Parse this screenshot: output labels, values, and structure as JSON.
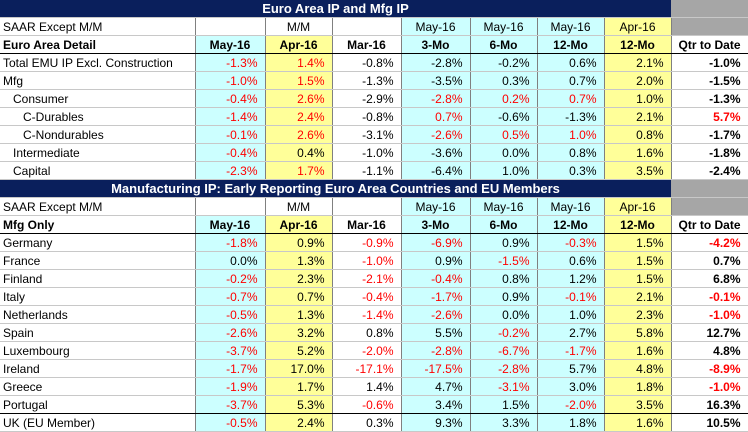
{
  "top": {
    "title": "Euro Area IP and Mfg IP",
    "h1": [
      "SAAR Except M/M",
      "",
      "M/M",
      "",
      "May-16",
      "May-16",
      "May-16",
      "Apr-16",
      ""
    ],
    "h2": [
      "Euro Area Detail",
      "May-16",
      "Apr-16",
      "Mar-16",
      "3-Mo",
      "6-Mo",
      "12-Mo",
      "12-Mo",
      "Qtr to Date"
    ],
    "rows": [
      {
        "label": "Total EMU IP Excl. Construction",
        "indent": 0,
        "v": [
          "-1.3%",
          "1.4%",
          "-0.8%",
          "-2.8%",
          "-0.2%",
          "0.6%",
          "2.1%",
          "-1.0%"
        ],
        "r": [
          1,
          1,
          0,
          0,
          0,
          0,
          0,
          0
        ]
      },
      {
        "label": "Mfg",
        "indent": 0,
        "v": [
          "-1.0%",
          "1.5%",
          "-1.3%",
          "-3.5%",
          "0.3%",
          "0.7%",
          "2.0%",
          "-1.5%"
        ],
        "r": [
          1,
          1,
          0,
          0,
          0,
          0,
          0,
          0
        ]
      },
      {
        "label": "Consumer",
        "indent": 1,
        "v": [
          "-0.4%",
          "2.6%",
          "-2.9%",
          "-2.8%",
          "0.2%",
          "0.7%",
          "1.0%",
          "-1.3%"
        ],
        "r": [
          1,
          1,
          0,
          1,
          1,
          1,
          0,
          0
        ]
      },
      {
        "label": "C-Durables",
        "indent": 2,
        "v": [
          "-1.4%",
          "2.4%",
          "-0.8%",
          "0.7%",
          "-0.6%",
          "-1.3%",
          "2.1%",
          "5.7%"
        ],
        "r": [
          1,
          1,
          0,
          1,
          0,
          0,
          0,
          1
        ]
      },
      {
        "label": "C-Nondurables",
        "indent": 2,
        "v": [
          "-0.1%",
          "2.6%",
          "-3.1%",
          "-2.6%",
          "0.5%",
          "1.0%",
          "0.8%",
          "-1.7%"
        ],
        "r": [
          1,
          1,
          0,
          1,
          1,
          1,
          0,
          0
        ]
      },
      {
        "label": "Intermediate",
        "indent": 1,
        "v": [
          "-0.4%",
          "0.4%",
          "-1.0%",
          "-3.6%",
          "0.0%",
          "0.8%",
          "1.6%",
          "-1.8%"
        ],
        "r": [
          1,
          0,
          0,
          0,
          0,
          0,
          0,
          0
        ]
      },
      {
        "label": "Capital",
        "indent": 1,
        "v": [
          "-2.3%",
          "1.7%",
          "-1.1%",
          "-6.4%",
          "1.0%",
          "0.3%",
          "3.5%",
          "-2.4%"
        ],
        "r": [
          1,
          1,
          0,
          0,
          0,
          0,
          0,
          0
        ]
      }
    ]
  },
  "bottom": {
    "title": "Manufacturing IP: Early Reporting Euro Area Countries and EU Members",
    "h1": [
      "SAAR Except M/M",
      "",
      "M/M",
      "",
      "May-16",
      "May-16",
      "May-16",
      "Apr-16",
      ""
    ],
    "h2": [
      "Mfg Only",
      "May-16",
      "Apr-16",
      "Mar-16",
      "3-Mo",
      "6-Mo",
      "12-Mo",
      "12-Mo",
      "Qtr to Date"
    ],
    "rows": [
      {
        "label": "Germany",
        "v": [
          "-1.8%",
          "0.9%",
          "-0.9%",
          "-6.9%",
          "0.9%",
          "-0.3%",
          "1.5%",
          "-4.2%"
        ],
        "r": [
          1,
          0,
          1,
          1,
          0,
          1,
          0,
          1
        ]
      },
      {
        "label": "France",
        "v": [
          "0.0%",
          "1.3%",
          "-1.0%",
          "0.9%",
          "-1.5%",
          "0.6%",
          "1.5%",
          "0.7%"
        ],
        "r": [
          0,
          0,
          1,
          0,
          1,
          0,
          0,
          0
        ]
      },
      {
        "label": "Finland",
        "v": [
          "-0.2%",
          "2.3%",
          "-2.1%",
          "-0.4%",
          "0.8%",
          "1.2%",
          "1.5%",
          "6.8%"
        ],
        "r": [
          1,
          0,
          1,
          1,
          0,
          0,
          0,
          0
        ]
      },
      {
        "label": "Italy",
        "v": [
          "-0.7%",
          "0.7%",
          "-0.4%",
          "-1.7%",
          "0.9%",
          "-0.1%",
          "2.1%",
          "-0.1%"
        ],
        "r": [
          1,
          0,
          1,
          1,
          0,
          1,
          0,
          1
        ]
      },
      {
        "label": "Netherlands",
        "v": [
          "-0.5%",
          "1.3%",
          "-1.4%",
          "-2.6%",
          "0.0%",
          "1.0%",
          "2.3%",
          "-1.0%"
        ],
        "r": [
          1,
          0,
          1,
          1,
          0,
          0,
          0,
          1
        ]
      },
      {
        "label": "Spain",
        "v": [
          "-2.6%",
          "3.2%",
          "0.8%",
          "5.5%",
          "-0.2%",
          "2.7%",
          "5.8%",
          "12.7%"
        ],
        "r": [
          1,
          0,
          0,
          0,
          1,
          0,
          0,
          0
        ]
      },
      {
        "label": "Luxembourg",
        "v": [
          "-3.7%",
          "5.2%",
          "-2.0%",
          "-2.8%",
          "-6.7%",
          "-1.7%",
          "1.6%",
          "4.8%"
        ],
        "r": [
          1,
          0,
          1,
          1,
          1,
          1,
          0,
          0
        ]
      },
      {
        "label": "Ireland",
        "v": [
          "-1.7%",
          "17.0%",
          "-17.1%",
          "-17.5%",
          "-2.8%",
          "5.7%",
          "4.8%",
          "-8.9%"
        ],
        "r": [
          1,
          0,
          1,
          1,
          1,
          0,
          0,
          1
        ]
      },
      {
        "label": "Greece",
        "v": [
          "-1.9%",
          "1.7%",
          "1.4%",
          "4.7%",
          "-3.1%",
          "3.0%",
          "1.8%",
          "-1.0%"
        ],
        "r": [
          1,
          0,
          0,
          0,
          1,
          0,
          0,
          1
        ]
      },
      {
        "label": "Portugal",
        "v": [
          "-3.7%",
          "5.3%",
          "-0.6%",
          "3.4%",
          "1.5%",
          "-2.0%",
          "3.5%",
          "16.3%"
        ],
        "r": [
          1,
          0,
          1,
          0,
          0,
          1,
          0,
          0
        ]
      },
      {
        "label": "UK (EU Member)",
        "v": [
          "-0.5%",
          "2.4%",
          "0.3%",
          "9.3%",
          "3.3%",
          "1.8%",
          "1.6%",
          "10.5%"
        ],
        "r": [
          1,
          0,
          0,
          0,
          0,
          0,
          0,
          0
        ]
      }
    ]
  },
  "colors": {
    "header": "#0a1f5c",
    "cyan": "#ccffff",
    "yellow": "#ffff99",
    "gray": "#a6a6a6",
    "negative": "#ff0000"
  }
}
